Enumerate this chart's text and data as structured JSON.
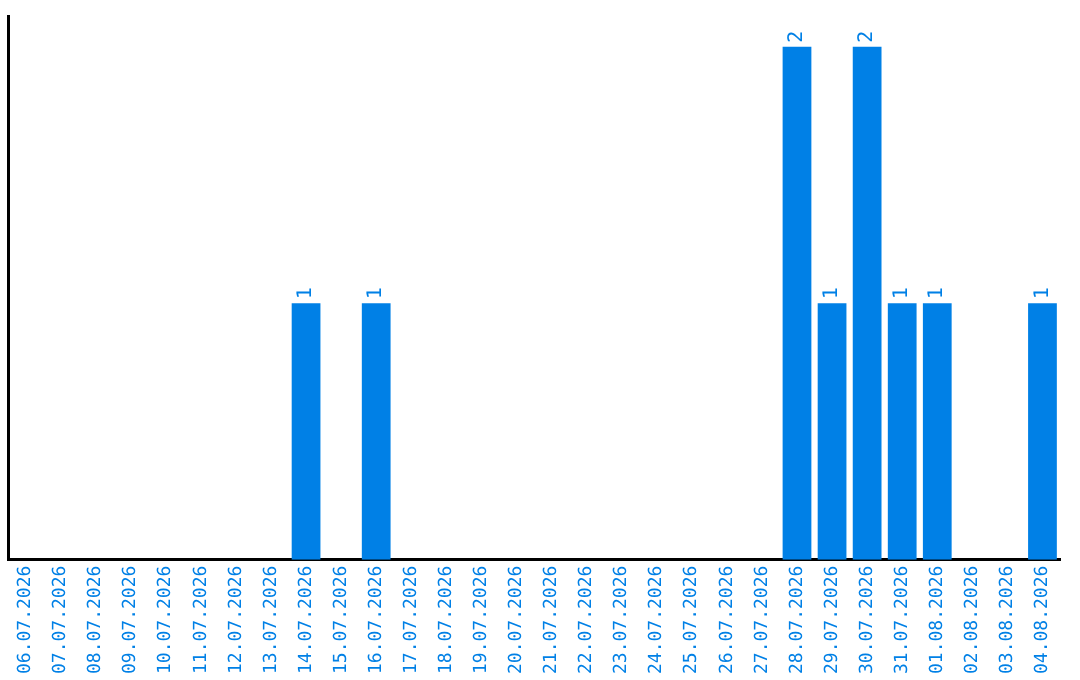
{
  "chart_data": {
    "type": "bar",
    "categories": [
      "06.07.2026",
      "07.07.2026",
      "08.07.2026",
      "09.07.2026",
      "10.07.2026",
      "11.07.2026",
      "12.07.2026",
      "13.07.2026",
      "14.07.2026",
      "15.07.2026",
      "16.07.2026",
      "17.07.2026",
      "18.07.2026",
      "19.07.2026",
      "20.07.2026",
      "21.07.2026",
      "22.07.2026",
      "23.07.2026",
      "24.07.2026",
      "25.07.2026",
      "26.07.2026",
      "27.07.2026",
      "28.07.2026",
      "29.07.2026",
      "30.07.2026",
      "31.07.2026",
      "01.08.2026",
      "02.08.2026",
      "03.08.2026",
      "04.08.2026"
    ],
    "values": [
      0,
      0,
      0,
      0,
      0,
      0,
      0,
      0,
      1,
      0,
      1,
      0,
      0,
      0,
      0,
      0,
      0,
      0,
      0,
      0,
      0,
      0,
      2,
      1,
      2,
      1,
      1,
      0,
      0,
      1
    ],
    "color": "#0080e6",
    "value_labels": [
      null,
      null,
      null,
      null,
      null,
      null,
      null,
      null,
      "1",
      null,
      "1",
      null,
      null,
      null,
      null,
      null,
      null,
      null,
      null,
      null,
      null,
      null,
      "2",
      "1",
      "2",
      "1",
      "1",
      null,
      null,
      "1"
    ],
    "grid": false,
    "legend": false
  }
}
